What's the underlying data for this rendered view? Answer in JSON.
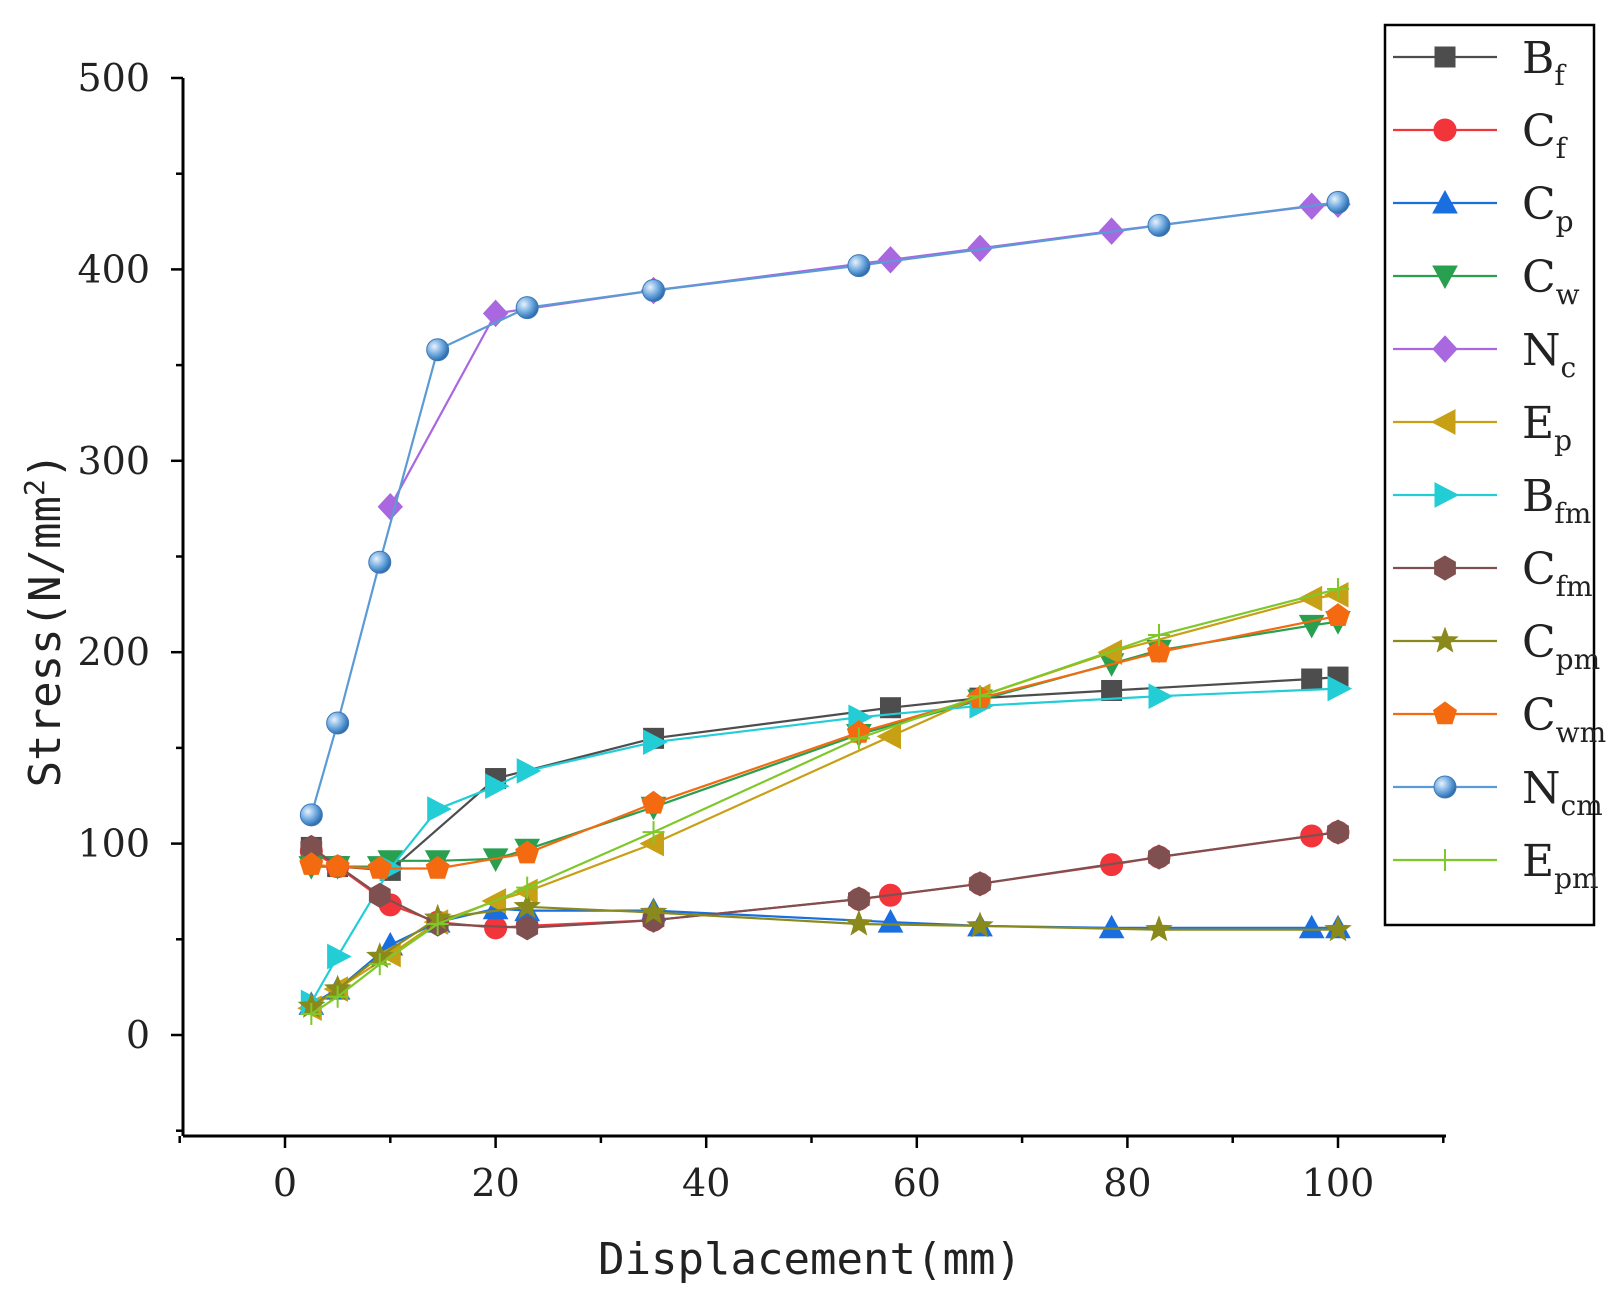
{
  "chart_data": {
    "type": "line",
    "xlabel": "Displacement(mm)",
    "ylabel": {
      "main": "Stress(N/mm",
      "sup": "2",
      "close": ")"
    },
    "xlim": [
      -10,
      110
    ],
    "ylim": [
      -50,
      500
    ],
    "xticks": [
      0,
      20,
      40,
      60,
      80,
      100
    ],
    "yticks": [
      0,
      100,
      200,
      300,
      400,
      500
    ],
    "grid": false,
    "legend_position": "right",
    "series": [
      {
        "name": "B",
        "sub": "f",
        "color": "#4d4d4d",
        "marker": "square",
        "points": [
          [
            2.5,
            98
          ],
          [
            5,
            88
          ],
          [
            10,
            86
          ],
          [
            20,
            134
          ],
          [
            35,
            155
          ],
          [
            57.5,
            171
          ],
          [
            66,
            176
          ],
          [
            78.5,
            180
          ],
          [
            97.5,
            186
          ],
          [
            100,
            187
          ]
        ]
      },
      {
        "name": "C",
        "sub": "f",
        "color": "#f2353a",
        "marker": "circle",
        "points": [
          [
            2.5,
            96
          ],
          [
            5,
            88
          ],
          [
            10,
            68
          ],
          [
            14.5,
            59
          ],
          [
            20,
            56
          ],
          [
            23,
            57
          ],
          [
            35,
            60
          ],
          [
            54.5,
            71
          ],
          [
            57.5,
            73
          ],
          [
            66,
            79
          ],
          [
            78.5,
            89
          ],
          [
            83,
            93
          ],
          [
            97.5,
            104
          ],
          [
            100,
            106
          ]
        ]
      },
      {
        "name": "C",
        "sub": "p",
        "color": "#1a6fe0",
        "marker": "triangle-up",
        "points": [
          [
            2.5,
            16
          ],
          [
            5,
            24
          ],
          [
            10,
            47
          ],
          [
            14.5,
            59
          ],
          [
            20,
            66
          ],
          [
            23,
            65
          ],
          [
            35,
            65
          ],
          [
            57.5,
            59
          ],
          [
            66,
            57
          ],
          [
            78.5,
            56
          ],
          [
            97.5,
            56
          ],
          [
            100,
            56
          ]
        ]
      },
      {
        "name": "C",
        "sub": "w",
        "color": "#28a050",
        "marker": "triangle-down",
        "points": [
          [
            2.5,
            88
          ],
          [
            5,
            88
          ],
          [
            9,
            88
          ],
          [
            10,
            91
          ],
          [
            14.5,
            91
          ],
          [
            20,
            92
          ],
          [
            23,
            97
          ],
          [
            35,
            119
          ],
          [
            54.5,
            157
          ],
          [
            66,
            175
          ],
          [
            78.5,
            194
          ],
          [
            83,
            201
          ],
          [
            97.5,
            214
          ],
          [
            100,
            216
          ]
        ]
      },
      {
        "name": "N",
        "sub": "c",
        "color": "#a967e0",
        "marker": "diamond",
        "points": [
          [
            10,
            276
          ],
          [
            20,
            377
          ],
          [
            35,
            389
          ],
          [
            57.5,
            405
          ],
          [
            66,
            411
          ],
          [
            78.5,
            420
          ],
          [
            97.5,
            433
          ],
          [
            100,
            434
          ]
        ]
      },
      {
        "name": "E",
        "sub": "p",
        "color": "#c7a015",
        "marker": "triangle-left",
        "points": [
          [
            2.5,
            14
          ],
          [
            5,
            24
          ],
          [
            10,
            42
          ],
          [
            14.5,
            59
          ],
          [
            20,
            70
          ],
          [
            23,
            75
          ],
          [
            35,
            100
          ],
          [
            57.5,
            156
          ],
          [
            66,
            177
          ],
          [
            78.5,
            200
          ],
          [
            97.5,
            228
          ],
          [
            100,
            230
          ]
        ]
      },
      {
        "name": "B",
        "sub": "fm",
        "color": "#22cdd6",
        "marker": "triangle-right",
        "points": [
          [
            2.5,
            17
          ],
          [
            5,
            41
          ],
          [
            10,
            87
          ],
          [
            14.5,
            118
          ],
          [
            20,
            130
          ],
          [
            23,
            138
          ],
          [
            35,
            153
          ],
          [
            54.5,
            166
          ],
          [
            66,
            172
          ],
          [
            83,
            177
          ],
          [
            100,
            181
          ]
        ]
      },
      {
        "name": "C",
        "sub": "fm",
        "color": "#7f5050",
        "marker": "hexagon",
        "points": [
          [
            2.5,
            98
          ],
          [
            9,
            73
          ],
          [
            14.5,
            58
          ],
          [
            23,
            56
          ],
          [
            35,
            60
          ],
          [
            54.5,
            71
          ],
          [
            66,
            79
          ],
          [
            83,
            93
          ],
          [
            100,
            106
          ]
        ]
      },
      {
        "name": "C",
        "sub": "pm",
        "color": "#8a8a1c",
        "marker": "star",
        "points": [
          [
            2.5,
            15
          ],
          [
            5,
            24
          ],
          [
            9,
            41
          ],
          [
            14.5,
            61
          ],
          [
            23,
            67
          ],
          [
            35,
            64
          ],
          [
            54.5,
            58
          ],
          [
            66,
            57
          ],
          [
            83,
            55
          ],
          [
            100,
            55
          ]
        ]
      },
      {
        "name": "C",
        "sub": "wm",
        "color": "#f46a10",
        "marker": "pentagon",
        "points": [
          [
            2.5,
            89
          ],
          [
            5,
            88
          ],
          [
            9,
            87
          ],
          [
            14.5,
            87
          ],
          [
            23,
            95
          ],
          [
            35,
            121
          ],
          [
            54.5,
            158
          ],
          [
            66,
            176
          ],
          [
            83,
            200
          ],
          [
            100,
            219
          ]
        ]
      },
      {
        "name": "N",
        "sub": "cm",
        "color": "#5b9bd5",
        "marker": "sphere",
        "points": [
          [
            2.5,
            115
          ],
          [
            5,
            163
          ],
          [
            9,
            247
          ],
          [
            14.5,
            358
          ],
          [
            23,
            380
          ],
          [
            35,
            389
          ],
          [
            54.5,
            402
          ],
          [
            83,
            423
          ],
          [
            100,
            435
          ]
        ]
      },
      {
        "name": "E",
        "sub": "pm",
        "color": "#7ec82a",
        "marker": "plus",
        "points": [
          [
            2.5,
            11
          ],
          [
            5,
            20
          ],
          [
            9,
            37
          ],
          [
            14.5,
            58
          ],
          [
            23,
            77
          ],
          [
            35,
            106
          ],
          [
            54.5,
            155
          ],
          [
            66,
            177
          ],
          [
            83,
            209
          ],
          [
            100,
            233
          ]
        ]
      }
    ]
  }
}
